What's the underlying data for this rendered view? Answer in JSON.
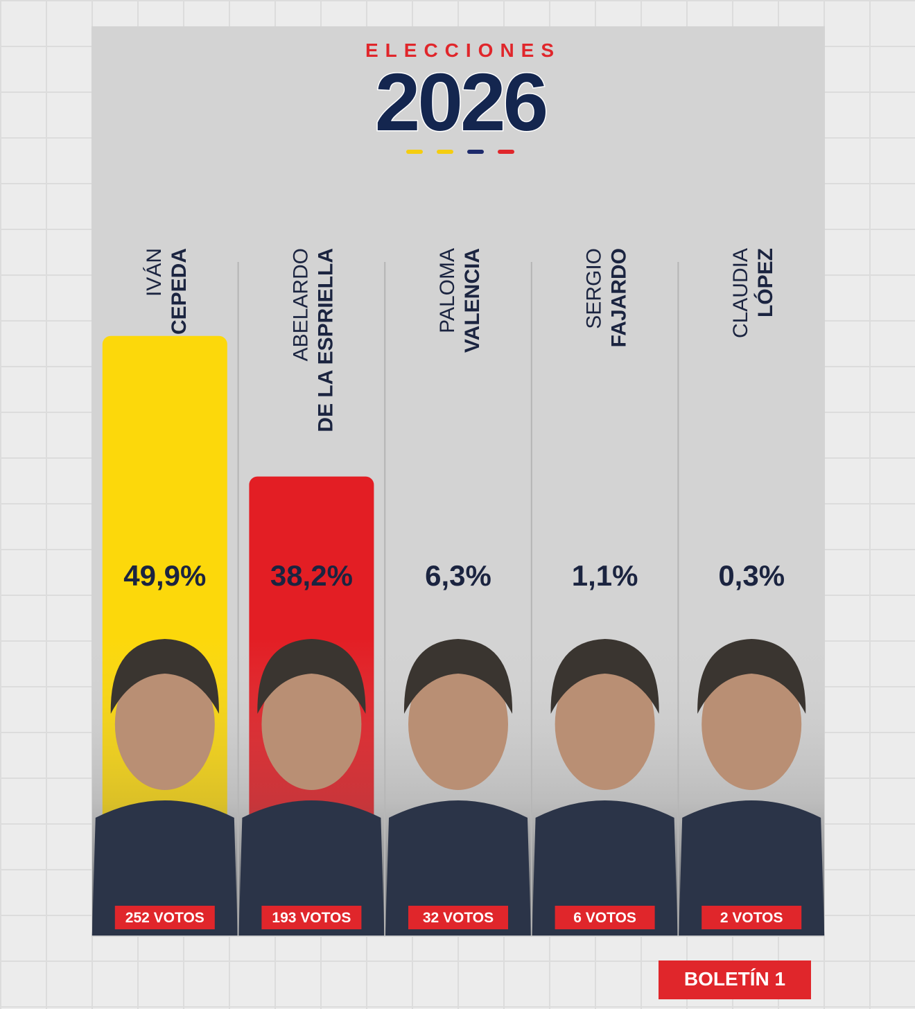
{
  "chart_data": {
    "type": "bar",
    "header": "ELECCIONES",
    "title": "2026",
    "first_names": [
      "IVÁN",
      "ABELARDO",
      "PALOMA",
      "SERGIO",
      "CLAUDIA"
    ],
    "categories": [
      "CEPEDA",
      "DE LA ESPRIELLA",
      "VALENCIA",
      "FAJARDO",
      "LÓPEZ"
    ],
    "values": [
      49.9,
      38.2,
      6.3,
      1.1,
      0.3
    ],
    "value_labels": [
      "49,9%",
      "38,2%",
      "6,3%",
      "1,1%",
      "0,3%"
    ],
    "value_label_colors": [
      "#1b2440",
      "#1b2440",
      "#1b2440",
      "#1b2440",
      "#1b2440"
    ],
    "colors": [
      "#fcd80b",
      "#e31e24",
      "#c9c9c9",
      "#c9c9c9",
      "#c9c9c9"
    ],
    "votes": [
      252,
      193,
      32,
      6,
      2
    ],
    "vote_labels": [
      "252 VOTOS",
      "193 VOTOS",
      "32 VOTOS",
      "6 VOTOS",
      "2 VOTOS"
    ],
    "ylim": [
      0,
      50
    ],
    "footer": "BOLETÍN 1"
  }
}
